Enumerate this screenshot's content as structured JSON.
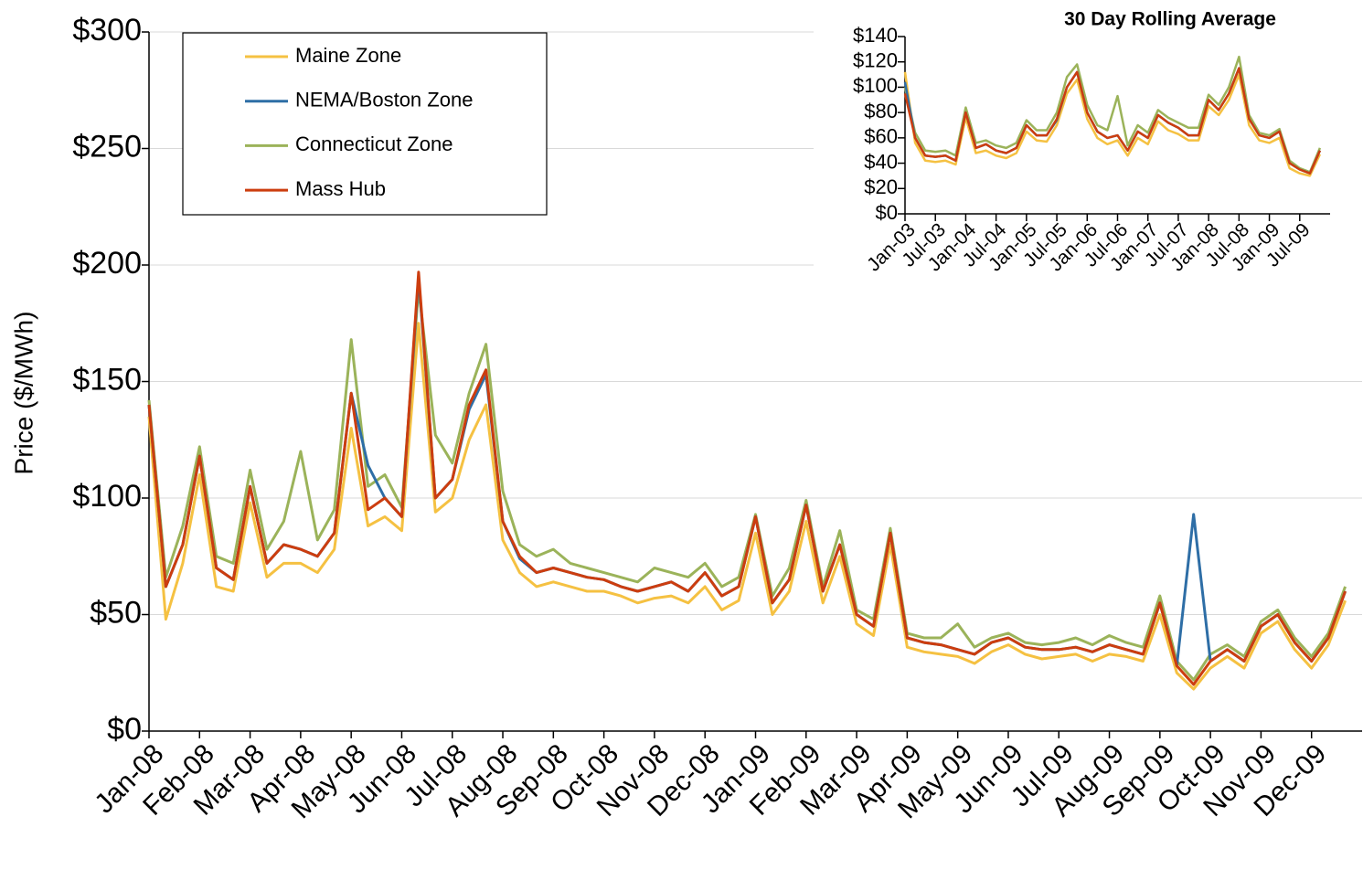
{
  "chart_data": [
    {
      "type": "line",
      "ylabel": "Price ($/MWh)",
      "categories": [
        "Jan-08",
        null,
        null,
        "Feb-08",
        null,
        null,
        "Mar-08",
        null,
        null,
        "Apr-08",
        null,
        null,
        "May-08",
        null,
        null,
        "Jun-08",
        null,
        null,
        "Jul-08",
        null,
        null,
        "Aug-08",
        null,
        null,
        "Sep-08",
        null,
        null,
        "Oct-08",
        null,
        null,
        "Nov-08",
        null,
        null,
        "Dec-08",
        null,
        null,
        "Jan-09",
        null,
        null,
        "Feb-09",
        null,
        null,
        "Mar-09",
        null,
        null,
        "Apr-09",
        null,
        null,
        "May-09",
        null,
        null,
        "Jun-09",
        null,
        null,
        "Jul-09",
        null,
        null,
        "Aug-09",
        null,
        null,
        "Sep-09",
        null,
        null,
        "Oct-09",
        null,
        null,
        "Nov-09",
        null,
        null,
        "Dec-09",
        null,
        null
      ],
      "series": [
        {
          "name": "Maine Zone",
          "color": "#f5c142",
          "values": [
            135,
            48,
            72,
            110,
            62,
            60,
            98,
            66,
            72,
            72,
            68,
            78,
            130,
            88,
            92,
            86,
            175,
            94,
            100,
            125,
            140,
            82,
            68,
            62,
            64,
            62,
            60,
            60,
            58,
            55,
            57,
            58,
            55,
            62,
            52,
            56,
            85,
            50,
            60,
            90,
            55,
            75,
            46,
            41,
            80,
            36,
            34,
            33,
            32,
            29,
            34,
            37,
            33,
            31,
            32,
            33,
            30,
            33,
            32,
            30,
            50,
            25,
            18,
            27,
            32,
            27,
            42,
            47,
            35,
            27,
            37,
            56
          ]
        },
        {
          "name": "NEMA/Boston Zone",
          "color": "#2e6ea6",
          "values": [
            140,
            62,
            80,
            118,
            70,
            65,
            105,
            72,
            80,
            78,
            75,
            85,
            145,
            114,
            100,
            92,
            195,
            100,
            108,
            138,
            153,
            90,
            74,
            68,
            70,
            68,
            66,
            65,
            62,
            60,
            62,
            64,
            60,
            68,
            58,
            62,
            92,
            55,
            65,
            97,
            60,
            80,
            50,
            45,
            85,
            40,
            38,
            37,
            35,
            33,
            38,
            40,
            36,
            35,
            35,
            36,
            34,
            37,
            35,
            33,
            55,
            28,
            93,
            30,
            35,
            30,
            45,
            50,
            38,
            30,
            40,
            60
          ]
        },
        {
          "name": "Connecticut Zone",
          "color": "#9bb35a",
          "values": [
            142,
            66,
            88,
            122,
            75,
            72,
            112,
            78,
            90,
            120,
            82,
            95,
            168,
            105,
            110,
            96,
            190,
            127,
            115,
            145,
            166,
            103,
            80,
            75,
            78,
            72,
            70,
            68,
            66,
            64,
            70,
            68,
            66,
            72,
            62,
            66,
            93,
            58,
            70,
            99,
            62,
            86,
            52,
            48,
            87,
            42,
            40,
            40,
            46,
            36,
            40,
            42,
            38,
            37,
            38,
            40,
            37,
            41,
            38,
            36,
            58,
            30,
            22,
            33,
            37,
            32,
            47,
            52,
            40,
            32,
            42,
            62
          ]
        },
        {
          "name": "Mass Hub",
          "color": "#cc3d0f",
          "values": [
            140,
            62,
            80,
            118,
            70,
            65,
            105,
            72,
            80,
            78,
            75,
            85,
            145,
            95,
            100,
            92,
            197,
            100,
            108,
            140,
            155,
            90,
            75,
            68,
            70,
            68,
            66,
            65,
            62,
            60,
            62,
            64,
            60,
            68,
            58,
            62,
            92,
            55,
            65,
            97,
            60,
            80,
            50,
            45,
            85,
            40,
            38,
            37,
            35,
            33,
            38,
            40,
            36,
            35,
            35,
            36,
            34,
            37,
            35,
            33,
            55,
            28,
            20,
            30,
            35,
            30,
            45,
            50,
            38,
            30,
            40,
            60
          ]
        }
      ],
      "ylim": [
        0,
        300
      ],
      "yticks": [
        {
          "value": 0,
          "label": "$0"
        },
        {
          "value": 50,
          "label": "$50"
        },
        {
          "value": 100,
          "label": "$100"
        },
        {
          "value": 150,
          "label": "$150"
        },
        {
          "value": 200,
          "label": "$200"
        },
        {
          "value": 250,
          "label": "$250"
        },
        {
          "value": 300,
          "label": "$300"
        }
      ],
      "grid": true,
      "legend": "top-left"
    },
    {
      "type": "line",
      "title": "30 Day Rolling Average",
      "categories": [
        "Jan-03",
        null,
        null,
        "Jul-03",
        null,
        null,
        "Jan-04",
        null,
        null,
        "Jul-04",
        null,
        null,
        "Jan-05",
        null,
        null,
        "Jul-05",
        null,
        null,
        "Jan-06",
        null,
        null,
        "Jul-06",
        null,
        null,
        "Jan-07",
        null,
        null,
        "Jul-07",
        null,
        null,
        "Jan-08",
        null,
        null,
        "Jul-08",
        null,
        null,
        "Jan-09",
        null,
        null,
        "Jul-09",
        null,
        null
      ],
      "series": [
        {
          "color": "#f5c142",
          "values": [
            112,
            56,
            42,
            41,
            42,
            39,
            76,
            48,
            50,
            46,
            44,
            48,
            65,
            58,
            57,
            70,
            95,
            106,
            75,
            60,
            55,
            58,
            46,
            60,
            55,
            73,
            66,
            63,
            58,
            58,
            85,
            78,
            90,
            110,
            70,
            58,
            56,
            60,
            36,
            32,
            30,
            47
          ]
        },
        {
          "color": "#2e6ea6",
          "values": [
            104,
            60,
            46,
            45,
            46,
            42,
            80,
            52,
            55,
            50,
            48,
            52,
            70,
            62,
            62,
            74,
            100,
            112,
            80,
            65,
            60,
            62,
            50,
            65,
            60,
            78,
            72,
            68,
            62,
            62,
            90,
            82,
            95,
            115,
            75,
            62,
            60,
            65,
            40,
            35,
            32,
            50
          ]
        },
        {
          "color": "#9bb35a",
          "values": [
            100,
            64,
            50,
            49,
            50,
            46,
            84,
            56,
            58,
            54,
            52,
            56,
            74,
            66,
            66,
            80,
            108,
            118,
            86,
            70,
            66,
            93,
            54,
            70,
            64,
            82,
            76,
            72,
            68,
            68,
            94,
            86,
            100,
            124,
            78,
            64,
            62,
            67,
            42,
            36,
            33,
            52
          ]
        },
        {
          "color": "#cc3d0f",
          "values": [
            95,
            60,
            46,
            45,
            46,
            42,
            80,
            52,
            55,
            50,
            48,
            52,
            70,
            62,
            62,
            75,
            100,
            112,
            80,
            65,
            60,
            62,
            50,
            65,
            60,
            78,
            72,
            68,
            62,
            62,
            90,
            82,
            95,
            115,
            75,
            62,
            60,
            65,
            40,
            35,
            32,
            50
          ]
        }
      ],
      "ylim": [
        0,
        140
      ],
      "yticks": [
        {
          "value": 0,
          "label": "$0"
        },
        {
          "value": 20,
          "label": "$20"
        },
        {
          "value": 40,
          "label": "$40"
        },
        {
          "value": 60,
          "label": "$60"
        },
        {
          "value": 80,
          "label": "$80"
        },
        {
          "value": 100,
          "label": "$100"
        },
        {
          "value": 120,
          "label": "$120"
        },
        {
          "value": 140,
          "label": "$140"
        }
      ],
      "grid": false
    }
  ]
}
